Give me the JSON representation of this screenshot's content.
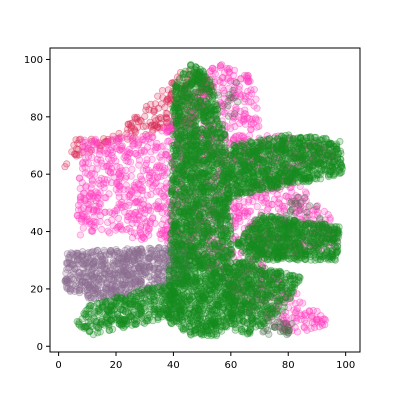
{
  "chart_data": {
    "type": "scatter",
    "title": "",
    "xlabel": "",
    "ylabel": "",
    "xlim": [
      -3,
      105
    ],
    "ylim": [
      -2,
      104
    ],
    "x_ticks": [
      0,
      20,
      40,
      60,
      80,
      100
    ],
    "y_ticks": [
      0,
      20,
      40,
      60,
      80,
      100
    ],
    "grid": false,
    "marker": "circle",
    "series": [
      {
        "color": "#dc2a55",
        "clusters": [
          {
            "polygon": [
              [
                2,
                62
              ],
              [
                5,
                72
              ],
              [
                20,
                74
              ],
              [
                35,
                88
              ],
              [
                45,
                98
              ],
              [
                55,
                92
              ],
              [
                48,
                78
              ],
              [
                35,
                75
              ],
              [
                20,
                70
              ],
              [
                6,
                66
              ]
            ],
            "n": 200
          }
        ]
      },
      {
        "color": "#ff3fbf",
        "clusters": [
          {
            "polygon": [
              [
                6,
                38
              ],
              [
                8,
                72
              ],
              [
                35,
                74
              ],
              [
                45,
                90
              ],
              [
                56,
                99
              ],
              [
                68,
                95
              ],
              [
                70,
                76
              ],
              [
                95,
                70
              ],
              [
                99,
                65
              ],
              [
                80,
                60
              ],
              [
                95,
                45
              ],
              [
                99,
                34
              ],
              [
                70,
                30
              ],
              [
                95,
                8
              ],
              [
                82,
                4
              ],
              [
                65,
                12
              ],
              [
                55,
                25
              ],
              [
                40,
                35
              ],
              [
                15,
                40
              ]
            ],
            "n": 1800
          }
        ]
      },
      {
        "color": "#8c6f90",
        "clusters": [
          {
            "polygon": [
              [
                2,
                20
              ],
              [
                3,
                33
              ],
              [
                45,
                35
              ],
              [
                46,
                22
              ],
              [
                30,
                18
              ],
              [
                12,
                16
              ]
            ],
            "n": 700
          }
        ]
      },
      {
        "color": "#168c20",
        "clusters": [
          {
            "polygon": [
              [
                38,
                8
              ],
              [
                40,
                90
              ],
              [
                46,
                99
              ],
              [
                52,
                95
              ],
              [
                58,
                75
              ],
              [
                62,
                10
              ],
              [
                55,
                3
              ],
              [
                45,
                4
              ]
            ],
            "n": 2200
          },
          {
            "polygon": [
              [
                58,
                50
              ],
              [
                60,
                70
              ],
              [
                80,
                74
              ],
              [
                98,
                72
              ],
              [
                99,
                60
              ],
              [
                80,
                56
              ],
              [
                62,
                52
              ]
            ],
            "n": 900
          },
          {
            "polygon": [
              [
                62,
                36
              ],
              [
                70,
                46
              ],
              [
                98,
                42
              ],
              [
                97,
                30
              ],
              [
                80,
                30
              ],
              [
                66,
                30
              ]
            ],
            "n": 700
          },
          {
            "polygon": [
              [
                58,
                20
              ],
              [
                62,
                30
              ],
              [
                70,
                28
              ],
              [
                85,
                24
              ],
              [
                78,
                12
              ],
              [
                66,
                4
              ],
              [
                60,
                6
              ]
            ],
            "n": 500
          },
          {
            "polygon": [
              [
                6,
                8
              ],
              [
                10,
                14
              ],
              [
                30,
                20
              ],
              [
                42,
                22
              ],
              [
                44,
                12
              ],
              [
                30,
                8
              ],
              [
                12,
                4
              ]
            ],
            "n": 400
          }
        ]
      },
      {
        "color": "#4e6f4e",
        "clusters": [
          {
            "polygon": [
              [
                70,
                4
              ],
              [
                74,
                10
              ],
              [
                82,
                8
              ],
              [
                80,
                2
              ]
            ],
            "n": 30
          },
          {
            "polygon": [
              [
                55,
                88
              ],
              [
                62,
                94
              ],
              [
                64,
                80
              ],
              [
                58,
                80
              ]
            ],
            "n": 12
          },
          {
            "polygon": [
              [
                78,
                44
              ],
              [
                80,
                52
              ],
              [
                88,
                54
              ],
              [
                92,
                44
              ]
            ],
            "n": 20
          }
        ]
      }
    ]
  }
}
